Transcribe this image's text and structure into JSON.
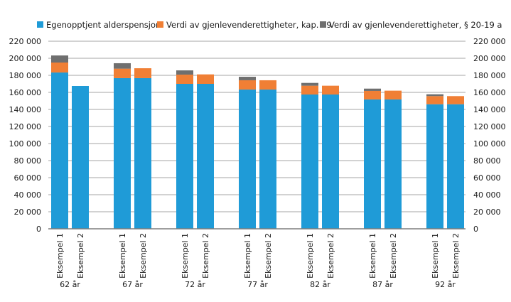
{
  "chart_data": {
    "type": "bar",
    "stacked": true,
    "title": "",
    "xlabel": "",
    "ylabel": "",
    "ylim": [
      0,
      220000
    ],
    "yticks": [
      0,
      20000,
      40000,
      60000,
      80000,
      100000,
      120000,
      140000,
      160000,
      180000,
      200000,
      220000
    ],
    "ytick_labels": [
      "0",
      "20 000",
      "40 000",
      "60 000",
      "80 000",
      "100 000",
      "120 000",
      "140 000",
      "160 000",
      "180 000",
      "200 000",
      "220 000"
    ],
    "grid": true,
    "legend_position": "top",
    "dual_y_axis_labels": true,
    "groups": [
      "62 år",
      "67 år",
      "72 år",
      "77 år",
      "82 år",
      "87 år",
      "92 år"
    ],
    "subcategories": [
      "Eksempel 1",
      "Eksempel 2"
    ],
    "series": [
      {
        "name": "Egenopptjent alderspensjon",
        "color": "#1f9bd7",
        "values": [
          [
            183300,
            167500
          ],
          [
            176700,
            176700
          ],
          [
            170000,
            170000
          ],
          [
            163300,
            163300
          ],
          [
            157500,
            157500
          ],
          [
            151700,
            151700
          ],
          [
            146100,
            146100
          ]
        ]
      },
      {
        "name": "Verdi av gjenlevenderettigheter, kap. 19",
        "color": "#f07f35",
        "values": [
          [
            11700,
            0
          ],
          [
            11100,
            11600
          ],
          [
            10800,
            11100
          ],
          [
            10900,
            10900
          ],
          [
            10300,
            10300
          ],
          [
            10000,
            10300
          ],
          [
            9500,
            9500
          ]
        ]
      },
      {
        "name": "Verdi av gjenlevenderettigheter, § 20-19 a",
        "color": "#6f6f6f",
        "values": [
          [
            8300,
            0
          ],
          [
            6400,
            0
          ],
          [
            5000,
            0
          ],
          [
            4100,
            0
          ],
          [
            3300,
            0
          ],
          [
            2700,
            0
          ],
          [
            2200,
            0
          ]
        ]
      }
    ]
  }
}
